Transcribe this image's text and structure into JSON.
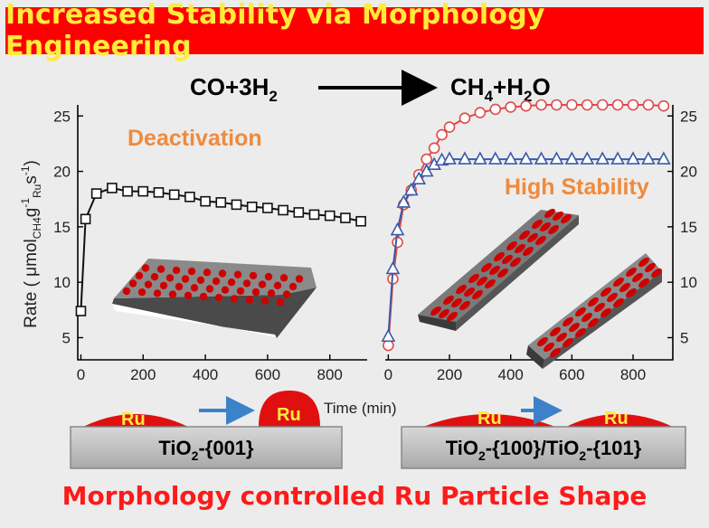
{
  "title": "Increased Stability via Morphology Engineering",
  "reaction": {
    "lhs": "CO+3H",
    "lhs_sub": "2",
    "rhs_a": "CH",
    "rhs_a_sub": "4",
    "rhs_b": "+H",
    "rhs_b_sub": "2",
    "rhs_c": "O"
  },
  "colors": {
    "banner": "#ff0000",
    "banner_text": "#ffeb3b",
    "accent_orange": "#f08a3c",
    "footer": "#ff1a1a",
    "circle_series": "#e04a4a",
    "triangle_series": "#3a5aa8",
    "particle": "#d00000"
  },
  "labels": {
    "deactivation": "Deactivation",
    "high_stability": "High Stability",
    "ru": "Ru",
    "tio2_001": "TiO",
    "tio2_001_sub": "2",
    "tio2_001_rest": "-{001}",
    "tio2_mixed_a": "TiO",
    "tio2_mixed_a_sub": "2",
    "tio2_mixed_b": "-{100}/TiO",
    "tio2_mixed_b_sub": "2",
    "tio2_mixed_c": "-{101}"
  },
  "footer": "Morphology controlled Ru Particle Shape",
  "chart_data": [
    {
      "type": "scatter",
      "xlabel": "Time (min)",
      "ylabel": "Rate ( μmol CH4 g Ru -1 s -1 )",
      "ylabel_parts": {
        "a": "Rate ( μmol",
        "sub1": "CH4",
        "b": "g",
        "sup1": "-1",
        "sub2": "Ru",
        "c": "s",
        "sup2": "-1",
        "d": ")"
      },
      "xlim": [
        -10,
        920
      ],
      "ylim": [
        3,
        26
      ],
      "x_ticks": [
        "0",
        "200",
        "400",
        "600",
        "800"
      ],
      "y_ticks": [
        "5",
        "10",
        "15",
        "20",
        "25"
      ],
      "series": [
        {
          "marker": "square",
          "x": [
            0,
            15,
            50,
            100,
            150,
            200,
            250,
            300,
            350,
            400,
            450,
            500,
            550,
            600,
            650,
            700,
            750,
            800,
            850,
            900
          ],
          "y": [
            7.4,
            15.7,
            18.0,
            18.5,
            18.2,
            18.2,
            18.1,
            17.9,
            17.7,
            17.3,
            17.2,
            17.0,
            16.8,
            16.7,
            16.5,
            16.3,
            16.1,
            16.0,
            15.8,
            15.5
          ]
        }
      ]
    },
    {
      "type": "scatter",
      "xlabel": "Time (min)",
      "xlim": [
        -10,
        930
      ],
      "ylim": [
        3,
        26
      ],
      "x_ticks": [
        "0",
        "200",
        "400",
        "600",
        "800"
      ],
      "y_ticks": [
        "5",
        "10",
        "15",
        "20",
        "25"
      ],
      "series": [
        {
          "marker": "circle",
          "x": [
            0,
            15,
            30,
            50,
            75,
            100,
            125,
            150,
            175,
            200,
            250,
            300,
            350,
            400,
            450,
            500,
            550,
            600,
            650,
            700,
            750,
            800,
            850,
            900
          ],
          "y": [
            4.3,
            10.3,
            13.6,
            17.0,
            18.3,
            19.7,
            21.1,
            22.1,
            23.3,
            24.0,
            24.8,
            25.3,
            25.6,
            25.8,
            25.9,
            26.0,
            26.0,
            26.0,
            26.0,
            26.0,
            26.0,
            26.0,
            26.0,
            25.9
          ]
        },
        {
          "marker": "triangle",
          "x": [
            0,
            15,
            30,
            50,
            75,
            100,
            125,
            150,
            175,
            200,
            250,
            300,
            350,
            400,
            450,
            500,
            550,
            600,
            650,
            700,
            750,
            800,
            850,
            900
          ],
          "y": [
            5.1,
            11.2,
            14.7,
            17.2,
            18.3,
            19.3,
            20.0,
            20.6,
            21.0,
            21.1,
            21.1,
            21.1,
            21.1,
            21.1,
            21.1,
            21.1,
            21.1,
            21.1,
            21.1,
            21.1,
            21.1,
            21.1,
            21.1,
            21.1
          ]
        }
      ]
    }
  ]
}
